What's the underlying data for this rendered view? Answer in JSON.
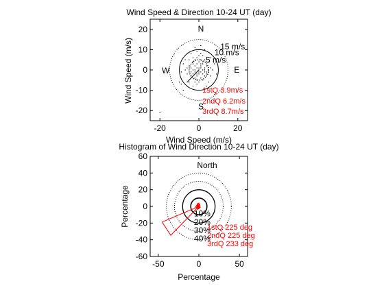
{
  "chart_data": [
    {
      "type": "scatter",
      "title": "Wind Speed & Direction 10-24 UT (day)",
      "xlabel": "Wind Speed (m/s)",
      "ylabel": "Wind Speed (m/s)",
      "xlim": [
        -25,
        25
      ],
      "ylim": [
        -25,
        25
      ],
      "xticks": [
        -20,
        0,
        20
      ],
      "yticks": [
        20,
        10,
        0,
        -10,
        -20
      ],
      "compass": {
        "n": "N",
        "s": "S",
        "e": "E",
        "w": "W"
      },
      "rings": [
        {
          "r": 5,
          "label": "5 m/s"
        },
        {
          "r": 10,
          "label": "10 m/s"
        },
        {
          "r": 15,
          "label": "15 m/s"
        }
      ],
      "quartile_labels": [
        "1stQ 3.9m/s",
        "2ndQ 6.2m/s",
        "3rdQ 8.7m/s"
      ],
      "quartile_line": {
        "direction_deg": 225,
        "length": 8.7
      },
      "points": [
        [
          -2,
          5
        ],
        [
          -1,
          6
        ],
        [
          0,
          7
        ],
        [
          1,
          5
        ],
        [
          -3,
          4
        ],
        [
          2,
          3
        ],
        [
          -2,
          2
        ],
        [
          1,
          2
        ],
        [
          3,
          1
        ],
        [
          -1,
          1
        ],
        [
          0,
          0
        ],
        [
          1,
          -1
        ],
        [
          -2,
          -1
        ],
        [
          2,
          -2
        ],
        [
          -1,
          -3
        ],
        [
          0,
          -2
        ],
        [
          3,
          -1
        ],
        [
          -3,
          -2
        ],
        [
          4,
          2
        ],
        [
          -4,
          1
        ],
        [
          5,
          -1
        ],
        [
          -5,
          2
        ],
        [
          2,
          4
        ],
        [
          -2,
          -4
        ],
        [
          1,
          -4
        ],
        [
          -1,
          -5
        ],
        [
          3,
          -3
        ],
        [
          -3,
          3
        ],
        [
          0,
          4
        ],
        [
          4,
          -2
        ],
        [
          -4,
          -3
        ],
        [
          6,
          1
        ],
        [
          -6,
          1
        ],
        [
          1,
          8
        ],
        [
          -1,
          9
        ],
        [
          2,
          7
        ],
        [
          -3,
          6
        ],
        [
          3,
          5
        ],
        [
          -5,
          5
        ],
        [
          5,
          4
        ],
        [
          -6,
          -2
        ],
        [
          6,
          -3
        ],
        [
          0,
          -6
        ],
        [
          -2,
          -6
        ],
        [
          2,
          -5
        ],
        [
          -7,
          0
        ],
        [
          7,
          0
        ],
        [
          -1,
          3
        ],
        [
          1,
          3
        ],
        [
          -2,
          0
        ],
        [
          2,
          0
        ],
        [
          0,
          1
        ],
        [
          0,
          -1
        ],
        [
          -1,
          -2
        ],
        [
          1,
          1
        ],
        [
          -3,
          0
        ],
        [
          3,
          0
        ],
        [
          -4,
          -1
        ],
        [
          4,
          -1
        ],
        [
          -1,
          -7
        ],
        [
          -20,
          -21
        ],
        [
          -8,
          -10
        ],
        [
          -9,
          -7
        ],
        [
          8,
          -12
        ],
        [
          -10,
          -6
        ],
        [
          0,
          10
        ],
        [
          3,
          10
        ],
        [
          -4,
          8
        ],
        [
          6,
          6
        ],
        [
          -7,
          5
        ],
        [
          -5,
          -6
        ],
        [
          5,
          -6
        ],
        [
          -8,
          3
        ],
        [
          8,
          3
        ],
        [
          -3,
          -8
        ],
        [
          4,
          -8
        ],
        [
          1,
          12
        ],
        [
          -2,
          11
        ],
        [
          9,
          -2
        ],
        [
          -9,
          -1
        ]
      ]
    },
    {
      "type": "pie",
      "title": "Histogram of Wind Direction 10-24 UT (day)",
      "xlabel": "Percentage",
      "ylabel": "Percentage",
      "xlim": [
        -60,
        60
      ],
      "ylim": [
        -60,
        60
      ],
      "xticks": [
        -50,
        0,
        50
      ],
      "yticks": [
        60,
        40,
        20,
        0,
        -20,
        -40,
        -60
      ],
      "north_label": "North",
      "rings": [
        {
          "r": 10,
          "label": "10%"
        },
        {
          "r": 20,
          "label": "20%"
        },
        {
          "r": 30,
          "label": "30%"
        },
        {
          "r": 40,
          "label": "40%"
        }
      ],
      "quartile_labels": [
        "1stQ 225 deg",
        "2ndQ 225 deg",
        "3rdQ 233 deg"
      ],
      "sectors": [
        {
          "from_deg": 0,
          "to_deg": 22.5,
          "percent": 3
        },
        {
          "from_deg": 22.5,
          "to_deg": 45,
          "percent": 2
        },
        {
          "from_deg": 45,
          "to_deg": 67.5,
          "percent": 1
        },
        {
          "from_deg": 67.5,
          "to_deg": 90,
          "percent": 1
        },
        {
          "from_deg": 90,
          "to_deg": 112.5,
          "percent": 1
        },
        {
          "from_deg": 112.5,
          "to_deg": 135,
          "percent": 2
        },
        {
          "from_deg": 135,
          "to_deg": 157.5,
          "percent": 2
        },
        {
          "from_deg": 157.5,
          "to_deg": 180,
          "percent": 2
        },
        {
          "from_deg": 180,
          "to_deg": 202.5,
          "percent": 3
        },
        {
          "from_deg": 202.5,
          "to_deg": 225,
          "percent": 4
        },
        {
          "from_deg": 225,
          "to_deg": 247.5,
          "percent": 49
        },
        {
          "from_deg": 247.5,
          "to_deg": 270,
          "percent": 4
        },
        {
          "from_deg": 270,
          "to_deg": 292.5,
          "percent": 3
        },
        {
          "from_deg": 292.5,
          "to_deg": 315,
          "percent": 3
        },
        {
          "from_deg": 315,
          "to_deg": 337.5,
          "percent": 3
        },
        {
          "from_deg": 337.5,
          "to_deg": 360,
          "percent": 4
        }
      ]
    }
  ]
}
